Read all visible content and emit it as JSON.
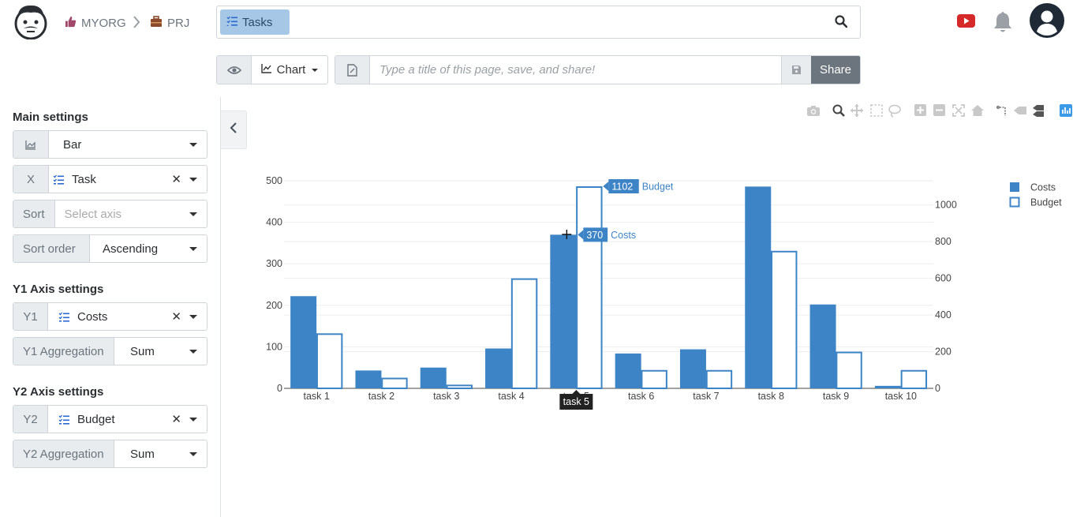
{
  "breadcrumb": {
    "org": "MYORG",
    "project": "PRJ"
  },
  "search": {
    "chip_label": "Tasks"
  },
  "toolbar": {
    "view_mode_label": "Chart",
    "title_placeholder": "Type a title of this page, save, and share!",
    "share_label": "Share"
  },
  "sidebar": {
    "main_title": "Main settings",
    "chart_type": "Bar",
    "x_label": "X",
    "x_value": "Task",
    "sort_label": "Sort",
    "sort_placeholder": "Select axis",
    "sort_order_label": "Sort order",
    "sort_order_value": "Ascending",
    "y1_title": "Y1 Axis settings",
    "y1_label": "Y1",
    "y1_value": "Costs",
    "y1_agg_label": "Y1 Aggregation",
    "y1_agg_value": "Sum",
    "y2_title": "Y2 Axis settings",
    "y2_label": "Y2",
    "y2_value": "Budget",
    "y2_agg_label": "Y2 Aggregation",
    "y2_agg_value": "Sum"
  },
  "colors": {
    "primary": "#3d84c6",
    "chip": "#a7c7e7",
    "share": "#6c757d"
  },
  "icons": [
    "camera-icon",
    "zoom-icon",
    "pan-icon",
    "box-select-icon",
    "lasso-icon",
    "zoom-in-icon",
    "zoom-out-icon",
    "autoscale-icon",
    "home-icon",
    "spike-lines-icon",
    "hover-closest-icon",
    "hover-compare-icon",
    "plotly-logo-icon"
  ],
  "chart_data": {
    "type": "bar",
    "categories": [
      "task 1",
      "task 2",
      "task 3",
      "task 4",
      "task 5",
      "task 6",
      "task 7",
      "task 8",
      "task 9",
      "task 10"
    ],
    "series": [
      {
        "name": "Costs",
        "axis": "y1",
        "style": "filled",
        "values": [
          222,
          43,
          50,
          96,
          370,
          84,
          94,
          486,
          202,
          6
        ]
      },
      {
        "name": "Budget",
        "axis": "y2",
        "style": "outline",
        "values": [
          300,
          58,
          20,
          600,
          1102,
          100,
          100,
          750,
          200,
          100
        ]
      }
    ],
    "y1_ticks": [
      0,
      100,
      200,
      300,
      400,
      500
    ],
    "y2_ticks": [
      0,
      200,
      400,
      600,
      800,
      1000
    ],
    "y1lim": [
      0,
      500
    ],
    "y2lim": [
      0,
      1102
    ],
    "legend": [
      "Costs",
      "Budget"
    ],
    "legend_position": "top-right",
    "hover": {
      "category": "task 5",
      "category_label": "task 5",
      "labels": [
        {
          "value": "370",
          "name": "Costs"
        },
        {
          "value": "1102",
          "name": "Budget"
        }
      ]
    },
    "grid": true
  }
}
